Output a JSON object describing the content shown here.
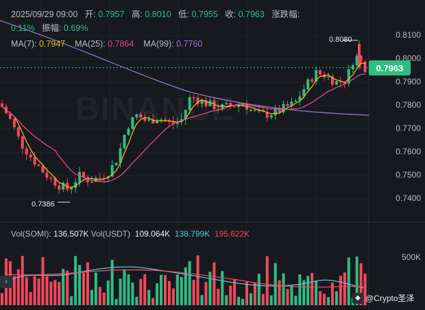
{
  "header": {
    "date": "2025/09/29 09:00",
    "open_label": "开:",
    "open": "0.7957",
    "high_label": "高:",
    "high": "0.8010",
    "low_label": "低:",
    "low": "0.7955",
    "close_label": "收:",
    "close": "0.7963",
    "change_label": "涨跌幅:",
    "change": "0.11%",
    "amp_label": "振幅:",
    "amp": "0.69%"
  },
  "ma": {
    "ma7_label": "MA(7):",
    "ma7": "0.7947",
    "ma25_label": "MA(25):",
    "ma25": "0.7864",
    "ma99_label": "MA(99):",
    "ma99": "0.7760"
  },
  "price_axis": [
    "0.8100",
    "0.8000",
    "0.7900",
    "0.7800",
    "0.7700",
    "0.7600",
    "0.7500",
    "0.7400"
  ],
  "current_price": "0.7963",
  "annotations": {
    "high": "0.8080",
    "low": "0.7386"
  },
  "watermark": "BINANCE",
  "volume": {
    "vol_label": "Vol(SOMI):",
    "vol": "136.507K",
    "usdt_label": "Vol(USDT)",
    "usdt": "109.064K",
    "ma1": "138.799K",
    "ma2": "195.622K",
    "axis_label": "500K"
  },
  "credit": {
    "text": "@Crypto圣泽",
    "icon": "app-icon"
  },
  "colors": {
    "up": "#2ebd85",
    "down": "#f6465d",
    "ma7": "#f0b90b",
    "ma25": "#e84393",
    "ma99": "#9b6fd6"
  },
  "chart_data": {
    "type": "candlestick",
    "y_axis_ticks": [
      0.81,
      0.8,
      0.79,
      0.78,
      0.77,
      0.76,
      0.75,
      0.74
    ],
    "ylim": [
      0.734,
      0.814
    ],
    "last": {
      "open": 0.7957,
      "high": 0.801,
      "low": 0.7955,
      "close": 0.7963
    },
    "period_high": 0.808,
    "period_low": 0.7386,
    "ma7": 0.7947,
    "ma25": 0.7864,
    "ma99": 0.776
  }
}
